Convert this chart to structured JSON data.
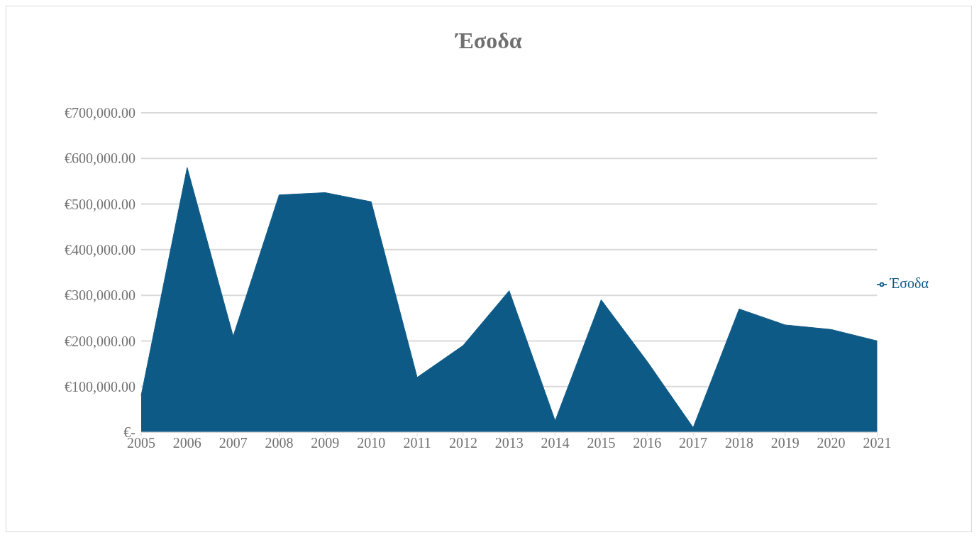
{
  "chart_data": {
    "type": "area",
    "title": "Έσοδα",
    "categories": [
      "2005",
      "2006",
      "2007",
      "2008",
      "2009",
      "2010",
      "2011",
      "2012",
      "2013",
      "2014",
      "2015",
      "2016",
      "2017",
      "2018",
      "2019",
      "2020",
      "2021"
    ],
    "series": [
      {
        "name": "Έσοδα",
        "color": "#0e5a87",
        "values": [
          80000,
          580000,
          210000,
          520000,
          525000,
          505000,
          120000,
          190000,
          310000,
          25000,
          290000,
          155000,
          10000,
          270000,
          235000,
          225000,
          200000
        ]
      }
    ],
    "ylim": [
      0,
      700000
    ],
    "yticks": [
      {
        "value": 0,
        "label": "€-"
      },
      {
        "value": 100000,
        "label": "€100,000.00"
      },
      {
        "value": 200000,
        "label": "€200,000.00"
      },
      {
        "value": 300000,
        "label": "€300,000.00"
      },
      {
        "value": 400000,
        "label": "€400,000.00"
      },
      {
        "value": 500000,
        "label": "€500,000.00"
      },
      {
        "value": 600000,
        "label": "€600,000.00"
      },
      {
        "value": 700000,
        "label": "€700,000.00"
      }
    ],
    "grid": "y",
    "legend": "right"
  }
}
